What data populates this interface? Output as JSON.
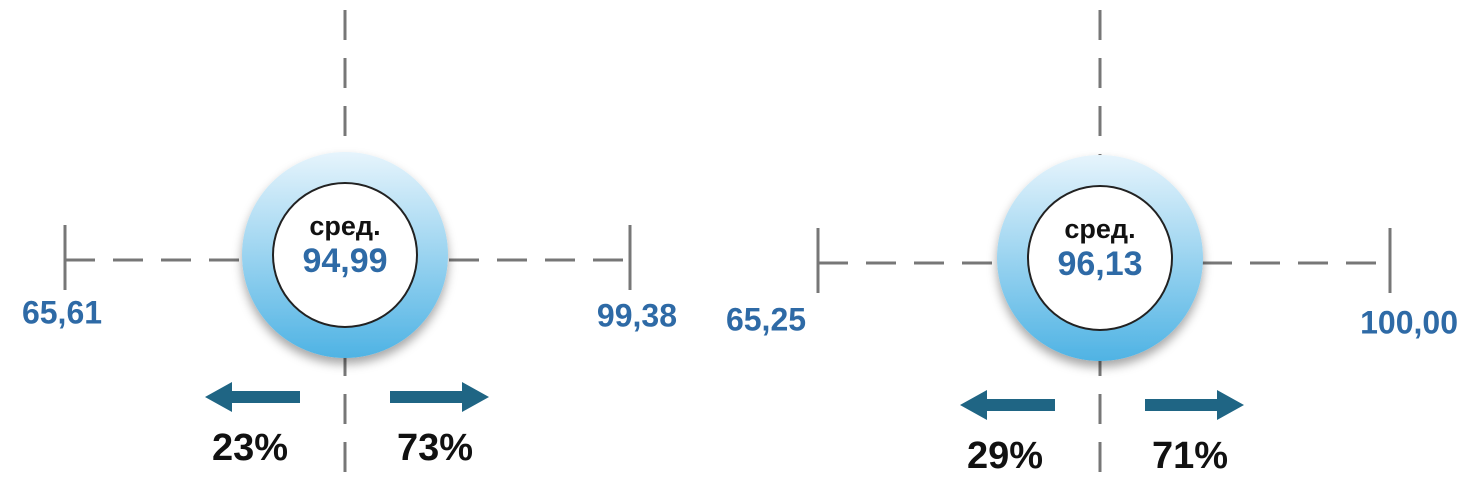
{
  "panels": [
    {
      "label": "сред.",
      "mean": "94,99",
      "min": "65,61",
      "max": "99,38",
      "below": "23%",
      "above": "73%"
    },
    {
      "label": "сред.",
      "mean": "96,13",
      "min": "65,25",
      "max": "100,00",
      "below": "29%",
      "above": "71%"
    }
  ]
}
